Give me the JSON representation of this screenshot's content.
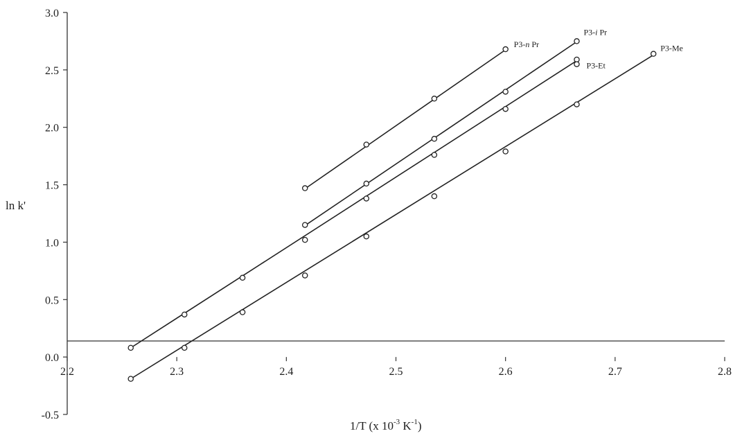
{
  "chart_data": {
    "type": "line",
    "xlabel": "1/T (x 10",
    "xlabel_exp1": "-3",
    "xlabel_mid": " K",
    "xlabel_exp2": "-1",
    "xlabel_end": ")",
    "ylabel": "ln k'",
    "xlim": [
      2.2,
      2.8
    ],
    "ylim": [
      -0.5,
      3.0
    ],
    "x_ticks": [
      2.2,
      2.3,
      2.4,
      2.5,
      2.6,
      2.7,
      2.8
    ],
    "x_tick_labels": [
      "2.2",
      "2.3",
      "2.4",
      "2.5",
      "2.6",
      "2.7",
      "2.8"
    ],
    "y_ticks": [
      -0.5,
      0.0,
      0.5,
      1.0,
      1.5,
      2.0,
      2.5,
      3.0
    ],
    "y_tick_labels": [
      "-0.5",
      "0.0",
      "0.5",
      "1.0",
      "1.5",
      "2.0",
      "2.5",
      "3.0"
    ],
    "grid": false,
    "legend": "none",
    "series": [
      {
        "name": "P3-n Pr",
        "label_main": "P3-",
        "label_italic": "n",
        "label_tail": " Pr",
        "x": [
          2.417,
          2.473,
          2.535,
          2.6
        ],
        "y": [
          1.47,
          1.85,
          2.25,
          2.68
        ],
        "fit": [
          [
            2.417,
            1.465
          ],
          [
            2.6,
            2.675
          ]
        ]
      },
      {
        "name": "P3-i Pr",
        "label_main": "P3-",
        "label_italic": "i",
        "label_tail": " Pr",
        "x": [
          2.417,
          2.473,
          2.535,
          2.6,
          2.665
        ],
        "y": [
          1.15,
          1.51,
          1.9,
          2.31,
          2.75
        ],
        "fit": [
          [
            2.417,
            1.145
          ],
          [
            2.665,
            2.745
          ]
        ]
      },
      {
        "name": "P3-Et",
        "label_main": "P3-Et",
        "label_italic": "",
        "label_tail": "",
        "x": [
          2.258,
          2.307,
          2.36,
          2.417,
          2.473,
          2.535,
          2.6,
          2.665,
          2.665
        ],
        "y": [
          0.08,
          0.37,
          0.69,
          1.02,
          1.38,
          1.76,
          2.16,
          2.59,
          2.55
        ],
        "fit": [
          [
            2.258,
            0.08
          ],
          [
            2.665,
            2.58
          ]
        ]
      },
      {
        "name": "P3-Me",
        "label_main": "P3-Me",
        "label_italic": "",
        "label_tail": "",
        "x": [
          2.258,
          2.307,
          2.36,
          2.417,
          2.473,
          2.535,
          2.6,
          2.665,
          2.735
        ],
        "y": [
          -0.19,
          0.08,
          0.39,
          0.71,
          1.05,
          1.4,
          1.79,
          2.2,
          2.64
        ],
        "fit": [
          [
            2.258,
            -0.19
          ],
          [
            2.735,
            2.63
          ]
        ]
      }
    ]
  }
}
